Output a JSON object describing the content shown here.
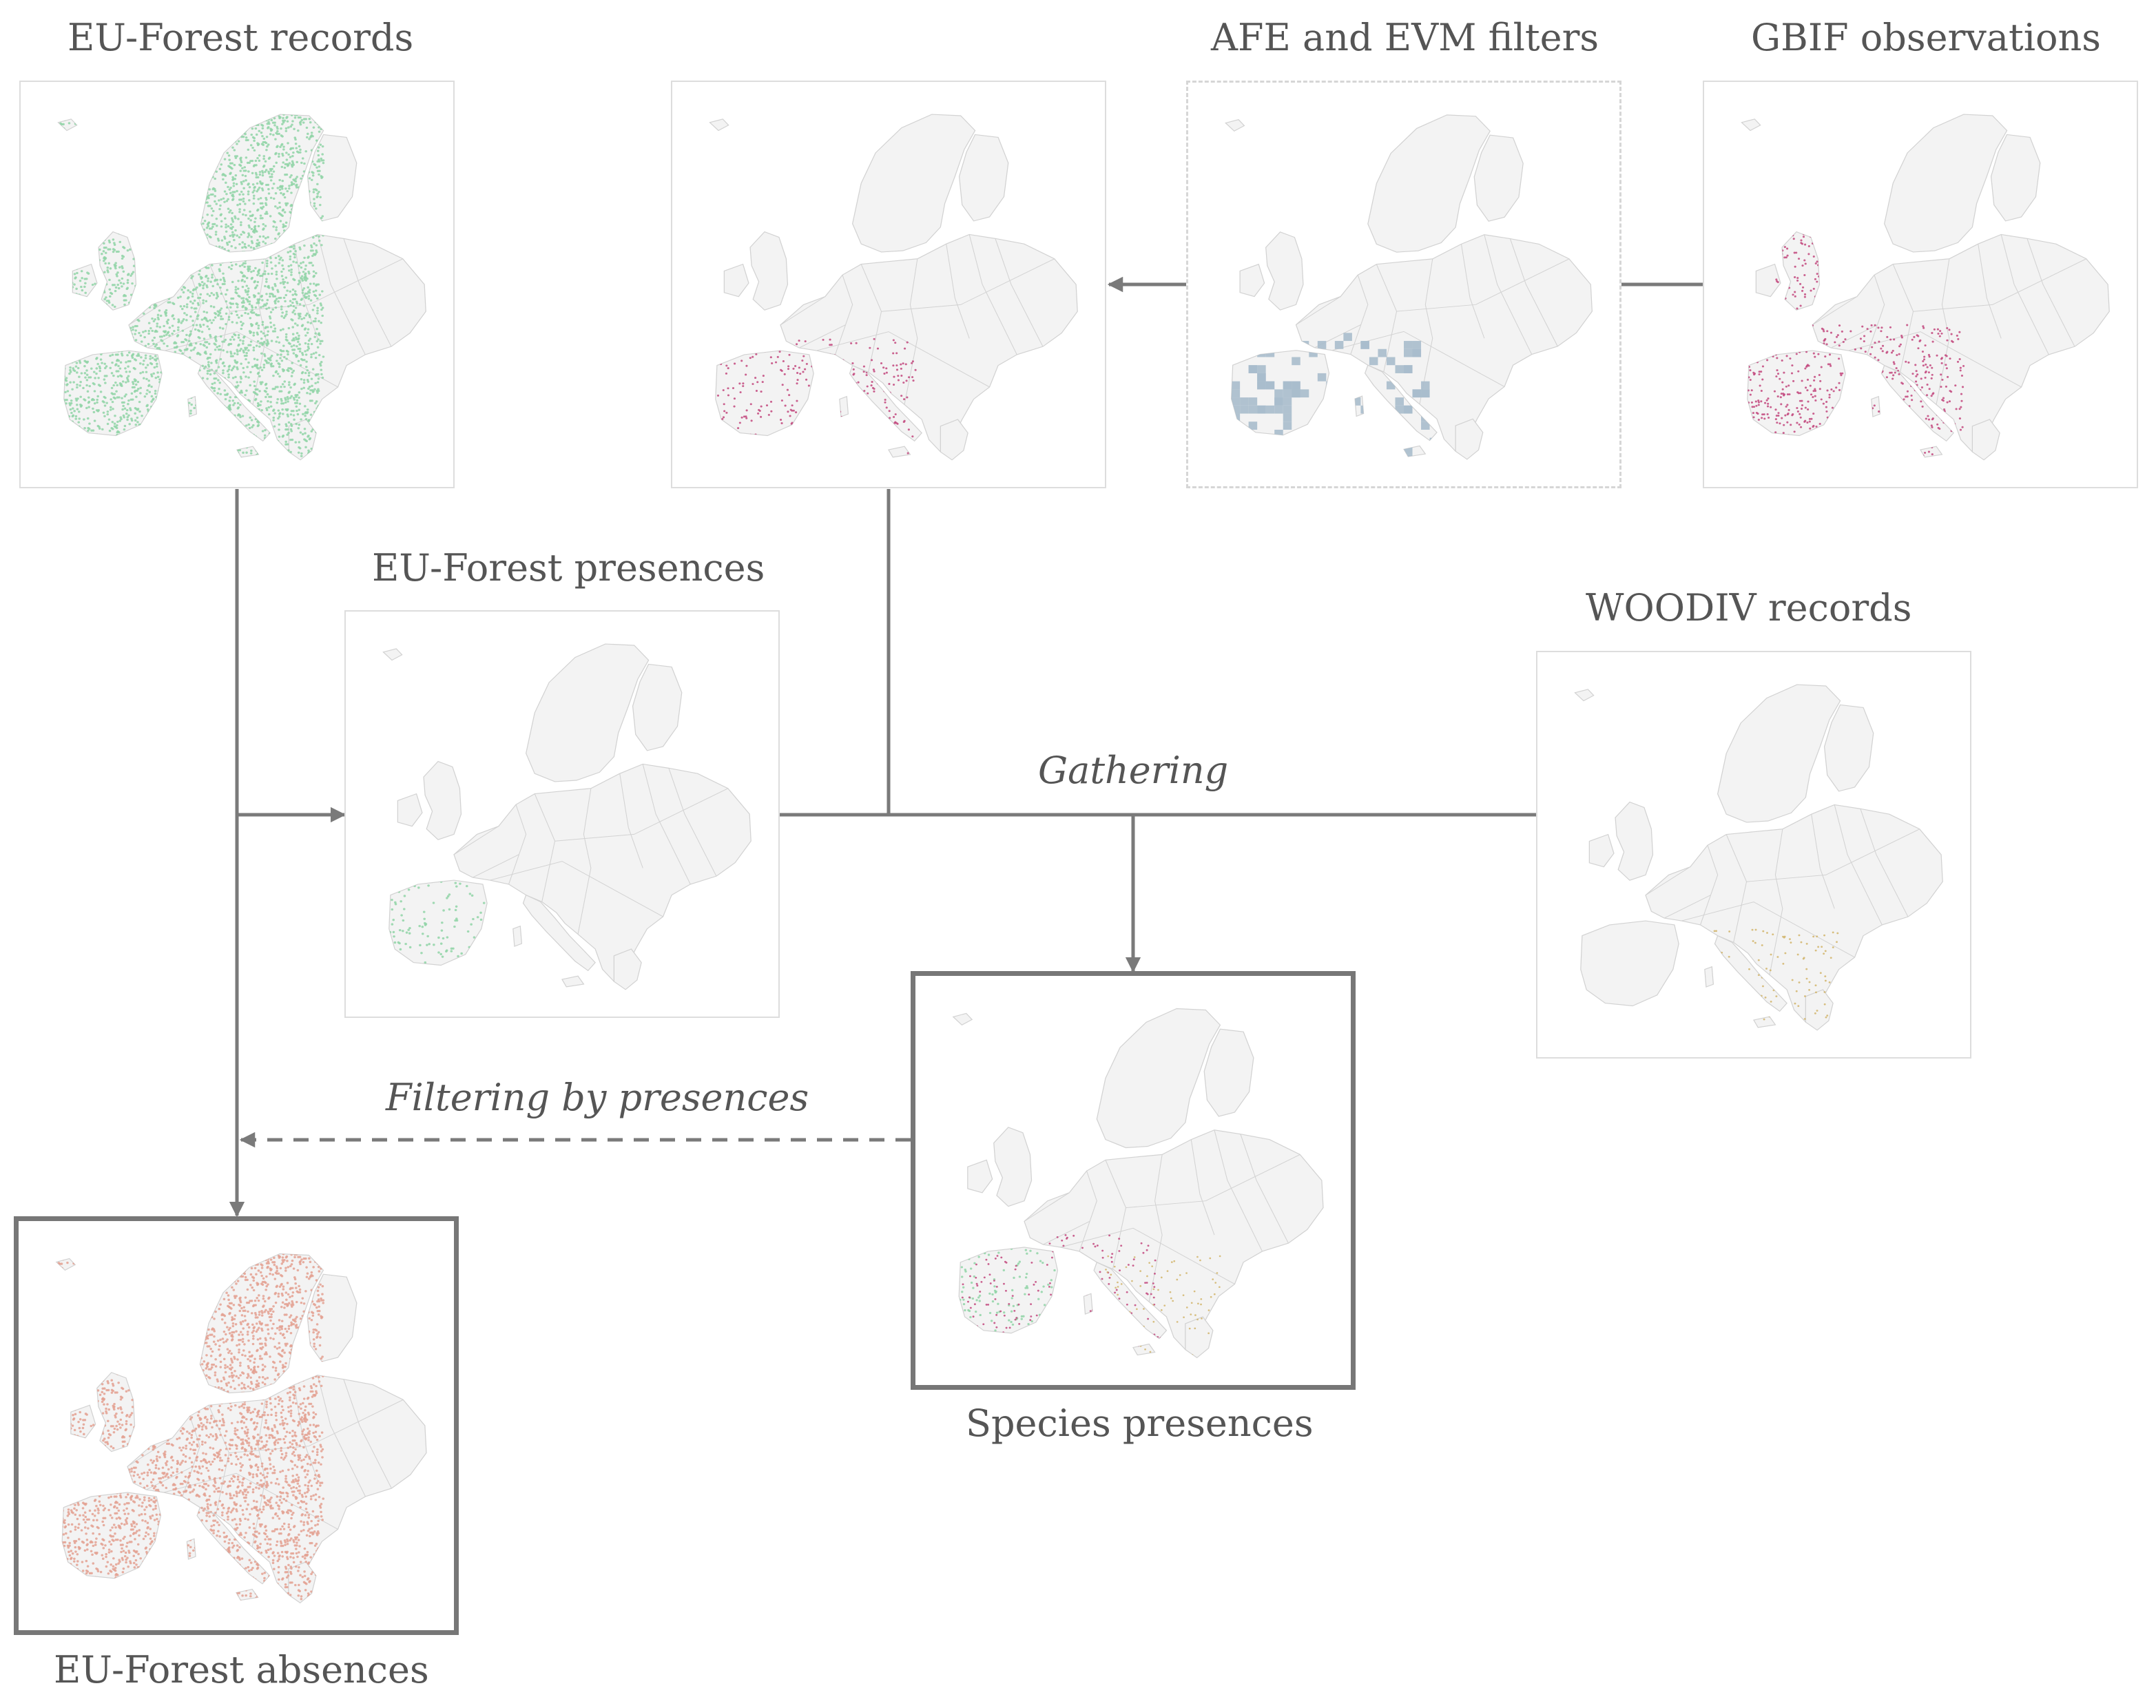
{
  "labels": {
    "eu_forest_records": "EU-Forest records",
    "afe_evm_filters": "AFE and EVM filters",
    "gbif_observations": "GBIF observations",
    "eu_forest_presences": "EU-Forest presences",
    "woodiv_records": "WOODIV records",
    "gathering": "Gathering",
    "filtering_by_presences": "Filtering by presences",
    "species_presences": "Species presences",
    "eu_forest_absences": "EU-Forest absences"
  },
  "colors": {
    "connector": "#7a7a7a",
    "map_land": "#f3f3f3",
    "map_border": "#d2d2d2",
    "eu_forest_green": "#8fd3a6",
    "gbif_magenta": "#c2477c",
    "afe_blue": "#a9bdcc",
    "woodiv_gold": "#d1b46a",
    "absence_salmon": "#e3a090"
  },
  "icons": {
    "arrow": "arrowhead-icon",
    "map": "europe-map-icon"
  }
}
